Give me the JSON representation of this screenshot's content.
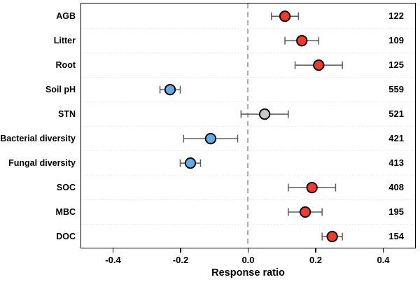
{
  "chart_data": {
    "type": "scatter",
    "subtype": "forest-plot",
    "title": "",
    "orientation": "horizontal",
    "x_axis": {
      "title": "Response ratio",
      "min": -0.5,
      "max": 0.5,
      "zero_reference_line": 0.0,
      "ticks": [
        {
          "value": -0.4,
          "label": "-0.4"
        },
        {
          "value": -0.2,
          "label": "-0.2"
        },
        {
          "value": 0.0,
          "label": "0.0"
        },
        {
          "value": 0.2,
          "label": "0.2"
        },
        {
          "value": 0.4,
          "label": "0.4"
        }
      ]
    },
    "legend": null,
    "grid": "dotted-row-separators",
    "palette": {
      "positive": "#ee3b2e",
      "negative": "#64abe9",
      "neutral": "#c9c9c9",
      "error_bar": "#5a5a5a",
      "point_outline": "#000000",
      "zero_line": "#a3a3a3",
      "separator": "#e0e0e0",
      "frame": "#000000"
    },
    "rows": [
      {
        "label": "AGB",
        "value": 0.11,
        "ci_low": 0.07,
        "ci_high": 0.15,
        "n": 122,
        "color_key": "positive"
      },
      {
        "label": "Litter",
        "value": 0.16,
        "ci_low": 0.11,
        "ci_high": 0.21,
        "n": 109,
        "color_key": "positive"
      },
      {
        "label": "Root",
        "value": 0.21,
        "ci_low": 0.14,
        "ci_high": 0.28,
        "n": 125,
        "color_key": "positive"
      },
      {
        "label": "Soil pH",
        "value": -0.23,
        "ci_low": -0.26,
        "ci_high": -0.2,
        "n": 559,
        "color_key": "negative"
      },
      {
        "label": "STN",
        "value": 0.05,
        "ci_low": -0.02,
        "ci_high": 0.12,
        "n": 521,
        "color_key": "neutral"
      },
      {
        "label": "Bacterial diversity",
        "value": -0.11,
        "ci_low": -0.19,
        "ci_high": -0.03,
        "n": 421,
        "color_key": "negative"
      },
      {
        "label": "Fungal diversity",
        "value": -0.17,
        "ci_low": -0.2,
        "ci_high": -0.14,
        "n": 413,
        "color_key": "negative"
      },
      {
        "label": "SOC",
        "value": 0.19,
        "ci_low": 0.12,
        "ci_high": 0.26,
        "n": 408,
        "color_key": "positive"
      },
      {
        "label": "MBC",
        "value": 0.17,
        "ci_low": 0.12,
        "ci_high": 0.22,
        "n": 195,
        "color_key": "positive"
      },
      {
        "label": "DOC",
        "value": 0.25,
        "ci_low": 0.22,
        "ci_high": 0.28,
        "n": 154,
        "color_key": "positive"
      }
    ]
  }
}
